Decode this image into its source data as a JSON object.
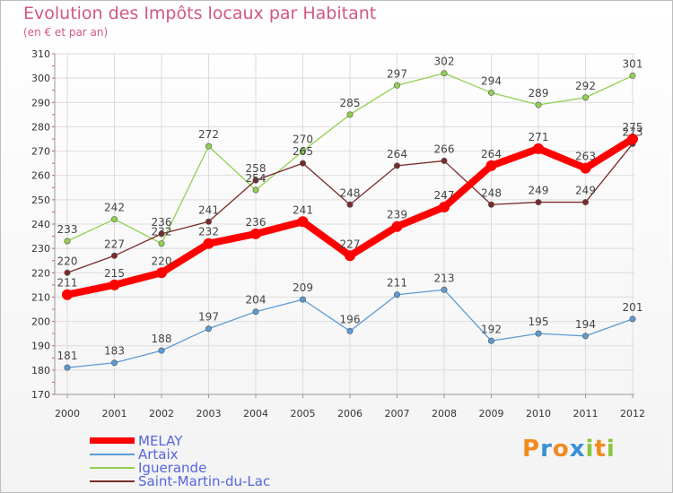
{
  "header": {
    "title": "Evolution des Impôts locaux par Habitant",
    "subtitle": "(en € et par an)"
  },
  "logo": {
    "letters": [
      "P",
      "r",
      "o",
      "x",
      "i",
      "t",
      "i"
    ],
    "colors": [
      "#f28a1e",
      "#3a8fd6",
      "#f28a1e",
      "#3a8fd6",
      "#8cc63e",
      "#f28a1e",
      "#8cc63e"
    ]
  },
  "chart_data": {
    "type": "line",
    "categories": [
      "2000",
      "2001",
      "2002",
      "2003",
      "2004",
      "2005",
      "2006",
      "2007",
      "2008",
      "2009",
      "2010",
      "2011",
      "2012"
    ],
    "ylim": [
      170,
      310
    ],
    "yticks": [
      170,
      180,
      190,
      200,
      210,
      220,
      230,
      240,
      250,
      260,
      270,
      280,
      290,
      300,
      310
    ],
    "grid": true,
    "legend_position": "bottom-left",
    "series": [
      {
        "name": "MELAY",
        "color": "#ff0000",
        "emphasis": true,
        "values": [
          211,
          215,
          220,
          232,
          236,
          241,
          227,
          239,
          247,
          264,
          271,
          263,
          275
        ]
      },
      {
        "name": "Artaix",
        "color": "#5b9bd5",
        "emphasis": false,
        "values": [
          181,
          183,
          188,
          197,
          204,
          209,
          196,
          211,
          213,
          192,
          195,
          194,
          201
        ]
      },
      {
        "name": "Iguerande",
        "color": "#92d050",
        "emphasis": false,
        "values": [
          233,
          242,
          232,
          272,
          254,
          270,
          285,
          297,
          302,
          294,
          289,
          292,
          301
        ]
      },
      {
        "name": "Saint-Martin-du-Lac",
        "color": "#7a2a2a",
        "emphasis": false,
        "values": [
          220,
          227,
          236,
          241,
          258,
          265,
          248,
          264,
          266,
          248,
          249,
          249,
          273
        ]
      }
    ]
  }
}
